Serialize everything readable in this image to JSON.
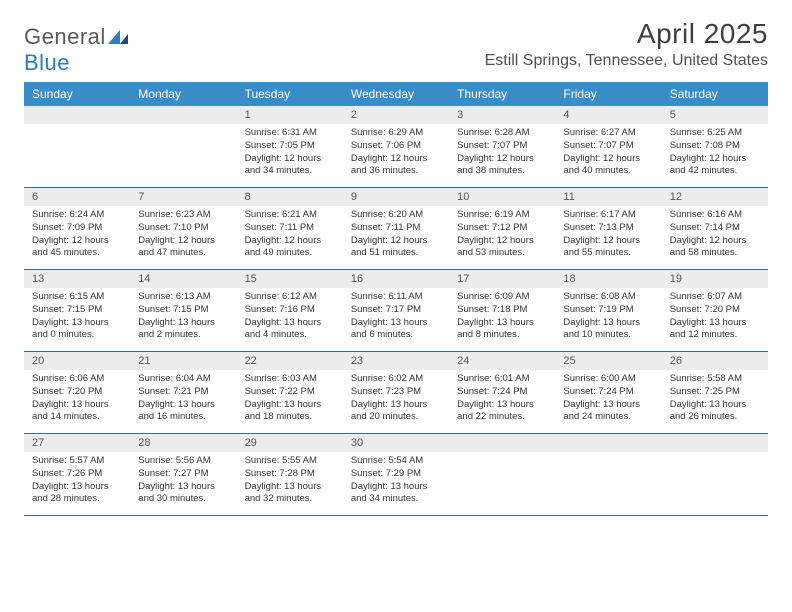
{
  "brand": {
    "part1": "General",
    "part2": "Blue"
  },
  "title": "April 2025",
  "location": "Estill Springs, Tennessee, United States",
  "colors": {
    "header_bg": "#3a8cc9",
    "header_text": "#ffffff",
    "daynum_bg": "#ececec",
    "row_border": "#3a6a8f"
  },
  "weekdays": [
    "Sunday",
    "Monday",
    "Tuesday",
    "Wednesday",
    "Thursday",
    "Friday",
    "Saturday"
  ],
  "grid": {
    "first_weekday_index": 2,
    "rows": 5,
    "cols": 7
  },
  "days": [
    {
      "n": "1",
      "sunrise": "6:31 AM",
      "sunset": "7:05 PM",
      "day_h": "12",
      "day_m": "34"
    },
    {
      "n": "2",
      "sunrise": "6:29 AM",
      "sunset": "7:06 PM",
      "day_h": "12",
      "day_m": "36"
    },
    {
      "n": "3",
      "sunrise": "6:28 AM",
      "sunset": "7:07 PM",
      "day_h": "12",
      "day_m": "38"
    },
    {
      "n": "4",
      "sunrise": "6:27 AM",
      "sunset": "7:07 PM",
      "day_h": "12",
      "day_m": "40"
    },
    {
      "n": "5",
      "sunrise": "6:25 AM",
      "sunset": "7:08 PM",
      "day_h": "12",
      "day_m": "42"
    },
    {
      "n": "6",
      "sunrise": "6:24 AM",
      "sunset": "7:09 PM",
      "day_h": "12",
      "day_m": "45"
    },
    {
      "n": "7",
      "sunrise": "6:23 AM",
      "sunset": "7:10 PM",
      "day_h": "12",
      "day_m": "47"
    },
    {
      "n": "8",
      "sunrise": "6:21 AM",
      "sunset": "7:11 PM",
      "day_h": "12",
      "day_m": "49"
    },
    {
      "n": "9",
      "sunrise": "6:20 AM",
      "sunset": "7:11 PM",
      "day_h": "12",
      "day_m": "51"
    },
    {
      "n": "10",
      "sunrise": "6:19 AM",
      "sunset": "7:12 PM",
      "day_h": "12",
      "day_m": "53"
    },
    {
      "n": "11",
      "sunrise": "6:17 AM",
      "sunset": "7:13 PM",
      "day_h": "12",
      "day_m": "55"
    },
    {
      "n": "12",
      "sunrise": "6:16 AM",
      "sunset": "7:14 PM",
      "day_h": "12",
      "day_m": "58"
    },
    {
      "n": "13",
      "sunrise": "6:15 AM",
      "sunset": "7:15 PM",
      "day_h": "13",
      "day_m": "0"
    },
    {
      "n": "14",
      "sunrise": "6:13 AM",
      "sunset": "7:15 PM",
      "day_h": "13",
      "day_m": "2"
    },
    {
      "n": "15",
      "sunrise": "6:12 AM",
      "sunset": "7:16 PM",
      "day_h": "13",
      "day_m": "4"
    },
    {
      "n": "16",
      "sunrise": "6:11 AM",
      "sunset": "7:17 PM",
      "day_h": "13",
      "day_m": "6"
    },
    {
      "n": "17",
      "sunrise": "6:09 AM",
      "sunset": "7:18 PM",
      "day_h": "13",
      "day_m": "8"
    },
    {
      "n": "18",
      "sunrise": "6:08 AM",
      "sunset": "7:19 PM",
      "day_h": "13",
      "day_m": "10"
    },
    {
      "n": "19",
      "sunrise": "6:07 AM",
      "sunset": "7:20 PM",
      "day_h": "13",
      "day_m": "12"
    },
    {
      "n": "20",
      "sunrise": "6:06 AM",
      "sunset": "7:20 PM",
      "day_h": "13",
      "day_m": "14"
    },
    {
      "n": "21",
      "sunrise": "6:04 AM",
      "sunset": "7:21 PM",
      "day_h": "13",
      "day_m": "16"
    },
    {
      "n": "22",
      "sunrise": "6:03 AM",
      "sunset": "7:22 PM",
      "day_h": "13",
      "day_m": "18"
    },
    {
      "n": "23",
      "sunrise": "6:02 AM",
      "sunset": "7:23 PM",
      "day_h": "13",
      "day_m": "20"
    },
    {
      "n": "24",
      "sunrise": "6:01 AM",
      "sunset": "7:24 PM",
      "day_h": "13",
      "day_m": "22"
    },
    {
      "n": "25",
      "sunrise": "6:00 AM",
      "sunset": "7:24 PM",
      "day_h": "13",
      "day_m": "24"
    },
    {
      "n": "26",
      "sunrise": "5:58 AM",
      "sunset": "7:25 PM",
      "day_h": "13",
      "day_m": "26"
    },
    {
      "n": "27",
      "sunrise": "5:57 AM",
      "sunset": "7:26 PM",
      "day_h": "13",
      "day_m": "28"
    },
    {
      "n": "28",
      "sunrise": "5:56 AM",
      "sunset": "7:27 PM",
      "day_h": "13",
      "day_m": "30"
    },
    {
      "n": "29",
      "sunrise": "5:55 AM",
      "sunset": "7:28 PM",
      "day_h": "13",
      "day_m": "32"
    },
    {
      "n": "30",
      "sunrise": "5:54 AM",
      "sunset": "7:29 PM",
      "day_h": "13",
      "day_m": "34"
    }
  ],
  "labels": {
    "sunrise": "Sunrise:",
    "sunset": "Sunset:",
    "daylight": "Daylight:",
    "hours": "hours",
    "and": "and",
    "minutes": "minutes."
  }
}
